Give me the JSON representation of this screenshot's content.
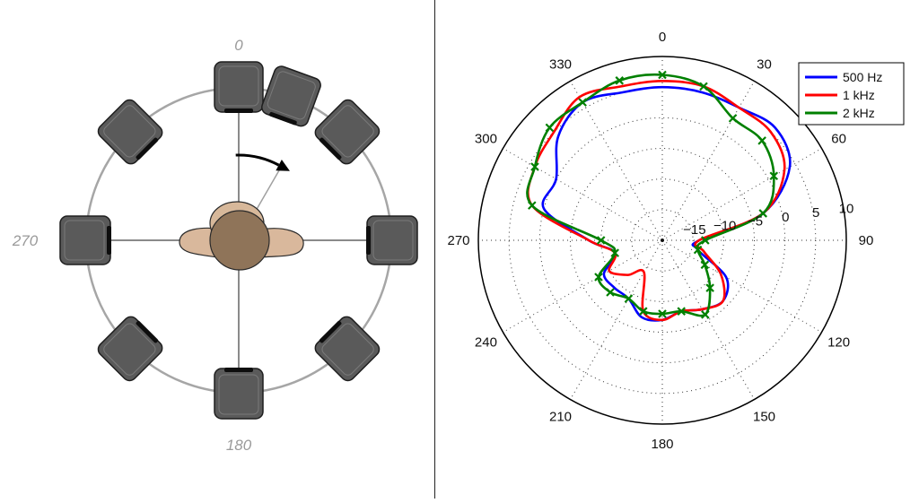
{
  "setup": {
    "angle_labels": [
      "0",
      "270",
      "180"
    ],
    "speaker_angles_deg": [
      0,
      20,
      45,
      90,
      135,
      180,
      225,
      270,
      315
    ],
    "rotation_arrow_deg": 30,
    "colors": {
      "ring": "#a6a6a6",
      "speaker": "#5a5a5a",
      "skin": "#d9b89c",
      "head": "#8f7459"
    }
  },
  "chart_data": {
    "type": "polar-line",
    "angle_ticks": [
      "0",
      "30",
      "60",
      "90",
      "120",
      "150",
      "180",
      "210",
      "240",
      "270",
      "300",
      "330"
    ],
    "radial_ticks": [
      "−15",
      "−10",
      "−5",
      "0",
      "5",
      "10"
    ],
    "radial_range": [
      -20,
      10
    ],
    "grid": true,
    "legend_position": "top-right",
    "series": [
      {
        "name": "500 Hz",
        "color": "#0000ff",
        "theta": [
          0,
          15,
          30,
          45,
          60,
          75,
          90,
          105,
          120,
          135,
          150,
          165,
          180,
          195,
          210,
          225,
          240,
          255,
          270,
          285,
          300,
          315,
          330,
          345
        ],
        "r": [
          5,
          5,
          5,
          6,
          4,
          -3,
          -14,
          -14,
          -8,
          -6,
          -7,
          -8,
          -7,
          -7,
          -9,
          -9,
          -9,
          -12,
          -8,
          0,
          0,
          4,
          6,
          5
        ]
      },
      {
        "name": "1 kHz",
        "color": "#ff0000",
        "theta": [
          0,
          15,
          30,
          45,
          60,
          75,
          90,
          105,
          120,
          135,
          150,
          165,
          180,
          195,
          210,
          225,
          240,
          255,
          270,
          285,
          300,
          315,
          330,
          345
        ],
        "r": [
          6,
          6,
          5,
          5,
          3,
          -3,
          -14,
          -13,
          -9,
          -6,
          -7,
          -8,
          -7,
          -8,
          -14,
          -12,
          -10,
          -12,
          -8,
          2,
          4,
          5,
          7,
          6
        ]
      },
      {
        "name": "2 kHz",
        "color": "#008000",
        "theta": [
          0,
          15,
          30,
          45,
          60,
          75,
          90,
          105,
          120,
          135,
          150,
          165,
          180,
          195,
          210,
          225,
          240,
          255,
          270,
          285,
          300,
          315,
          330,
          345
        ],
        "r": [
          7,
          6,
          3,
          3,
          1,
          -3,
          -13,
          -14,
          -12,
          -9,
          -6,
          -8,
          -8,
          -8,
          -9,
          -8,
          -8,
          -12,
          -10,
          2,
          4,
          6,
          6,
          7
        ]
      }
    ]
  }
}
